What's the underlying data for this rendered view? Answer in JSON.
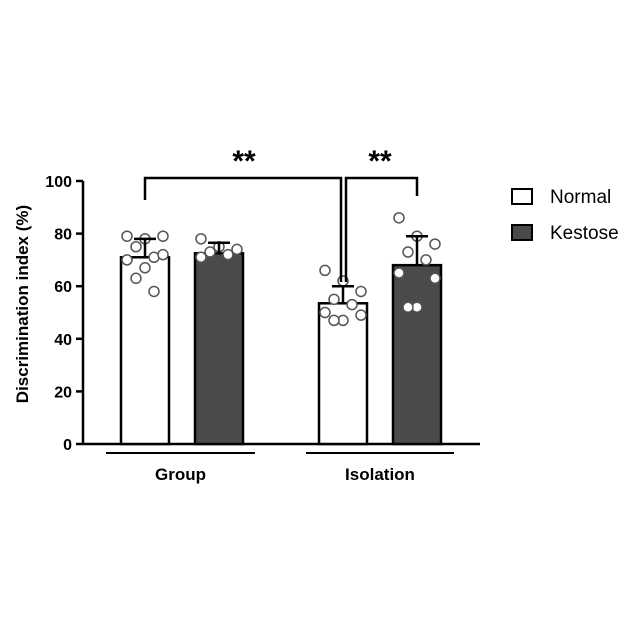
{
  "chart_data": {
    "type": "bar",
    "ylabel": "Discrimination index (%)",
    "xlabel": "",
    "ylim": [
      0,
      100
    ],
    "yticks": [
      0,
      20,
      40,
      60,
      80,
      100
    ],
    "categories": [
      "Group",
      "Isolation"
    ],
    "series": [
      {
        "name": "Normal",
        "color": "#ffffff",
        "values": [
          71,
          53.5
        ],
        "errors": [
          7,
          6.5
        ],
        "points": [
          [
            79,
            78,
            79,
            75,
            71,
            70,
            72,
            67,
            63,
            58
          ],
          [
            66,
            62,
            58,
            55,
            53,
            50,
            49,
            47,
            47
          ]
        ]
      },
      {
        "name": "Kestose",
        "color": "#4a4a4a",
        "values": [
          72.5,
          68
        ],
        "errors": [
          4,
          11
        ],
        "points": [
          [
            78,
            75,
            74,
            73,
            72,
            71
          ],
          [
            86,
            79,
            76,
            73,
            70,
            65,
            63,
            52,
            52
          ]
        ]
      }
    ],
    "significance": [
      {
        "label": "**",
        "from": "Group Normal",
        "to": "Isolation Normal"
      },
      {
        "label": "**",
        "from": "Isolation Normal",
        "to": "Isolation Kestose"
      }
    ],
    "legend_position": "top-right",
    "grid": false
  }
}
